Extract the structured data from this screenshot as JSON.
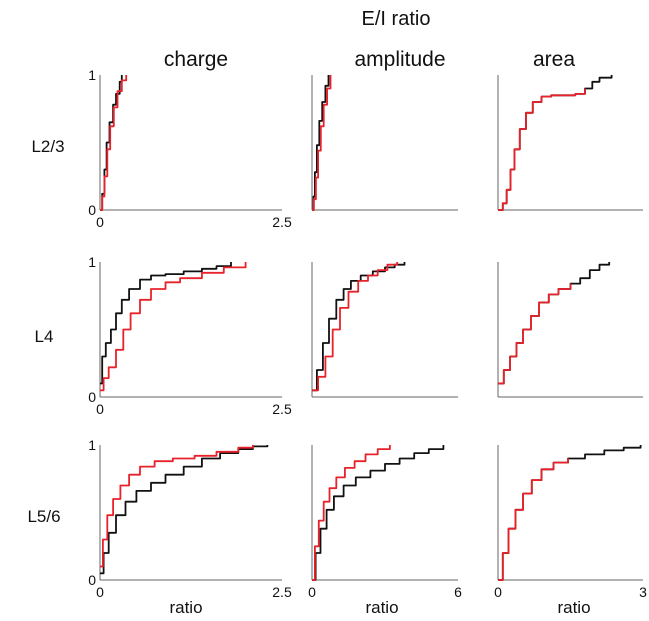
{
  "figure": {
    "title": "E/I ratio",
    "column_titles": [
      "charge",
      "amplitude",
      "area"
    ],
    "row_labels": [
      "L2/3",
      "L4",
      "L5/6"
    ],
    "xlabel": "ratio",
    "colors": {
      "series_a": "#111111",
      "series_b": "#e8222a",
      "axis": "#666666"
    }
  },
  "chart_data": [
    {
      "type": "line",
      "row": "L2/3",
      "column": "charge",
      "xlim": [
        0,
        2.5
      ],
      "ylim": [
        0,
        1
      ],
      "xticks": [
        "0",
        "2.5"
      ],
      "yticks": [
        "0",
        "1"
      ],
      "series": [
        {
          "color": "black",
          "x": [
            0,
            0.03,
            0.06,
            0.09,
            0.13,
            0.18,
            0.22,
            0.27,
            0.3
          ],
          "y": [
            0,
            0.12,
            0.3,
            0.5,
            0.65,
            0.78,
            0.86,
            0.95,
            1.0
          ]
        },
        {
          "color": "red",
          "x": [
            0,
            0.03,
            0.06,
            0.1,
            0.14,
            0.19,
            0.24,
            0.3,
            0.36
          ],
          "y": [
            0,
            0.1,
            0.25,
            0.45,
            0.62,
            0.76,
            0.88,
            0.96,
            1.0
          ]
        }
      ]
    },
    {
      "type": "line",
      "row": "L2/3",
      "column": "amplitude",
      "xlim": [
        0,
        6
      ],
      "ylim": [
        0,
        1
      ],
      "xticks": [],
      "yticks": [],
      "series": [
        {
          "color": "black",
          "x": [
            0,
            0.06,
            0.12,
            0.2,
            0.3,
            0.42,
            0.55,
            0.68
          ],
          "y": [
            0,
            0.1,
            0.28,
            0.48,
            0.66,
            0.8,
            0.92,
            1.0
          ]
        },
        {
          "color": "red",
          "x": [
            0,
            0.08,
            0.16,
            0.25,
            0.36,
            0.48,
            0.62,
            0.76
          ],
          "y": [
            0,
            0.08,
            0.24,
            0.44,
            0.62,
            0.78,
            0.9,
            1.0
          ]
        }
      ]
    },
    {
      "type": "line",
      "row": "L2/3",
      "column": "area",
      "xlim": [
        0,
        3
      ],
      "ylim": [
        0,
        1
      ],
      "xticks": [],
      "yticks": [],
      "series": [
        {
          "color": "black",
          "x": [
            0,
            0.1,
            0.18,
            0.26,
            0.34,
            0.45,
            0.58,
            0.72,
            0.9,
            1.1,
            1.35,
            1.6,
            1.8,
            1.95,
            2.1,
            2.35
          ],
          "y": [
            0,
            0.05,
            0.15,
            0.3,
            0.45,
            0.6,
            0.72,
            0.8,
            0.84,
            0.85,
            0.85,
            0.86,
            0.9,
            0.95,
            0.98,
            1.0
          ]
        },
        {
          "color": "red",
          "x": [
            0,
            0.1,
            0.18,
            0.26,
            0.34,
            0.45,
            0.58,
            0.72,
            0.9,
            1.1,
            1.35,
            1.6,
            1.8
          ],
          "y": [
            0,
            0.05,
            0.15,
            0.3,
            0.45,
            0.6,
            0.72,
            0.8,
            0.84,
            0.85,
            0.85,
            0.86,
            0.9
          ]
        }
      ]
    },
    {
      "type": "line",
      "row": "L4",
      "column": "charge",
      "xlim": [
        0,
        2.5
      ],
      "ylim": [
        0,
        1
      ],
      "xticks": [
        "0",
        "2.5"
      ],
      "yticks": [
        "0",
        "1"
      ],
      "series": [
        {
          "color": "black",
          "x": [
            0,
            0.03,
            0.08,
            0.15,
            0.22,
            0.3,
            0.4,
            0.55,
            0.7,
            0.9,
            1.15,
            1.4,
            1.6,
            1.8
          ],
          "y": [
            0.1,
            0.3,
            0.4,
            0.5,
            0.62,
            0.72,
            0.8,
            0.87,
            0.9,
            0.91,
            0.93,
            0.95,
            0.97,
            1.0
          ]
        },
        {
          "color": "red",
          "x": [
            0,
            0.05,
            0.12,
            0.22,
            0.32,
            0.42,
            0.55,
            0.7,
            0.9,
            1.1,
            1.4,
            1.7,
            2.0
          ],
          "y": [
            0.05,
            0.14,
            0.22,
            0.35,
            0.5,
            0.62,
            0.72,
            0.8,
            0.85,
            0.88,
            0.92,
            0.96,
            1.0
          ]
        }
      ]
    },
    {
      "type": "line",
      "row": "L4",
      "column": "amplitude",
      "xlim": [
        0,
        6
      ],
      "ylim": [
        0,
        1
      ],
      "xticks": [],
      "yticks": [],
      "series": [
        {
          "color": "black",
          "x": [
            0,
            0.2,
            0.45,
            0.7,
            1.0,
            1.3,
            1.6,
            2.0,
            2.5,
            3.0,
            3.4,
            3.8
          ],
          "y": [
            0.05,
            0.2,
            0.4,
            0.58,
            0.72,
            0.8,
            0.86,
            0.9,
            0.93,
            0.96,
            0.98,
            1.0
          ]
        },
        {
          "color": "red",
          "x": [
            0,
            0.25,
            0.55,
            0.85,
            1.15,
            1.5,
            1.9,
            2.3,
            2.7,
            3.1,
            3.5
          ],
          "y": [
            0.05,
            0.15,
            0.3,
            0.5,
            0.66,
            0.78,
            0.86,
            0.9,
            0.94,
            0.98,
            1.0
          ]
        }
      ]
    },
    {
      "type": "line",
      "row": "L4",
      "column": "area",
      "xlim": [
        0,
        3
      ],
      "ylim": [
        0,
        1
      ],
      "xticks": [],
      "yticks": [],
      "series": [
        {
          "color": "black",
          "x": [
            0,
            0.12,
            0.25,
            0.38,
            0.52,
            0.68,
            0.85,
            1.05,
            1.25,
            1.5,
            1.7,
            1.9,
            2.1,
            2.3
          ],
          "y": [
            0.1,
            0.2,
            0.3,
            0.4,
            0.5,
            0.6,
            0.7,
            0.76,
            0.8,
            0.84,
            0.88,
            0.94,
            0.98,
            1.0
          ]
        },
        {
          "color": "red",
          "x": [
            0,
            0.12,
            0.25,
            0.38,
            0.52,
            0.68,
            0.85,
            1.05,
            1.25,
            1.5
          ],
          "y": [
            0.1,
            0.2,
            0.3,
            0.4,
            0.5,
            0.6,
            0.7,
            0.76,
            0.8,
            0.84
          ]
        }
      ]
    },
    {
      "type": "line",
      "row": "L5/6",
      "column": "charge",
      "xlim": [
        0,
        2.5
      ],
      "ylim": [
        0,
        1
      ],
      "xticks": [
        "0",
        "2.5"
      ],
      "yticks": [
        "0",
        "1"
      ],
      "series": [
        {
          "color": "black",
          "x": [
            0,
            0.05,
            0.12,
            0.22,
            0.35,
            0.5,
            0.7,
            0.9,
            1.15,
            1.4,
            1.65,
            1.9,
            2.1,
            2.3
          ],
          "y": [
            0.05,
            0.2,
            0.35,
            0.48,
            0.58,
            0.66,
            0.72,
            0.78,
            0.84,
            0.9,
            0.94,
            0.97,
            0.99,
            1.0
          ]
        },
        {
          "color": "red",
          "x": [
            0,
            0.04,
            0.1,
            0.18,
            0.28,
            0.4,
            0.55,
            0.75,
            1.0,
            1.3,
            1.6,
            1.9,
            2.1
          ],
          "y": [
            0.1,
            0.3,
            0.48,
            0.6,
            0.7,
            0.78,
            0.84,
            0.88,
            0.9,
            0.92,
            0.95,
            0.98,
            1.0
          ]
        }
      ]
    },
    {
      "type": "line",
      "row": "L5/6",
      "column": "amplitude",
      "xlim": [
        0,
        6
      ],
      "ylim": [
        0,
        1
      ],
      "xticks": [
        "0",
        "6"
      ],
      "yticks": [],
      "series": [
        {
          "color": "black",
          "x": [
            0,
            0.15,
            0.35,
            0.6,
            0.9,
            1.3,
            1.8,
            2.4,
            3.0,
            3.6,
            4.2,
            4.8,
            5.4
          ],
          "y": [
            0,
            0.2,
            0.38,
            0.52,
            0.62,
            0.7,
            0.76,
            0.81,
            0.86,
            0.9,
            0.94,
            0.97,
            1.0
          ]
        },
        {
          "color": "red",
          "x": [
            0,
            0.12,
            0.28,
            0.48,
            0.72,
            1.0,
            1.35,
            1.75,
            2.2,
            2.7,
            3.2
          ],
          "y": [
            0,
            0.25,
            0.44,
            0.58,
            0.68,
            0.76,
            0.83,
            0.88,
            0.93,
            0.97,
            1.0
          ]
        }
      ]
    },
    {
      "type": "line",
      "row": "L5/6",
      "column": "area",
      "xlim": [
        0,
        3
      ],
      "ylim": [
        0,
        1
      ],
      "xticks": [
        "0",
        "3"
      ],
      "yticks": [],
      "series": [
        {
          "color": "black",
          "x": [
            0,
            0.1,
            0.22,
            0.36,
            0.52,
            0.7,
            0.9,
            1.15,
            1.45,
            1.8,
            2.2,
            2.6,
            2.95
          ],
          "y": [
            0,
            0.2,
            0.38,
            0.52,
            0.64,
            0.74,
            0.82,
            0.87,
            0.9,
            0.93,
            0.96,
            0.98,
            1.0
          ]
        },
        {
          "color": "red",
          "x": [
            0,
            0.1,
            0.22,
            0.36,
            0.52,
            0.7,
            0.9,
            1.15,
            1.45
          ],
          "y": [
            0,
            0.2,
            0.38,
            0.52,
            0.64,
            0.74,
            0.82,
            0.87,
            0.9
          ]
        }
      ]
    }
  ]
}
